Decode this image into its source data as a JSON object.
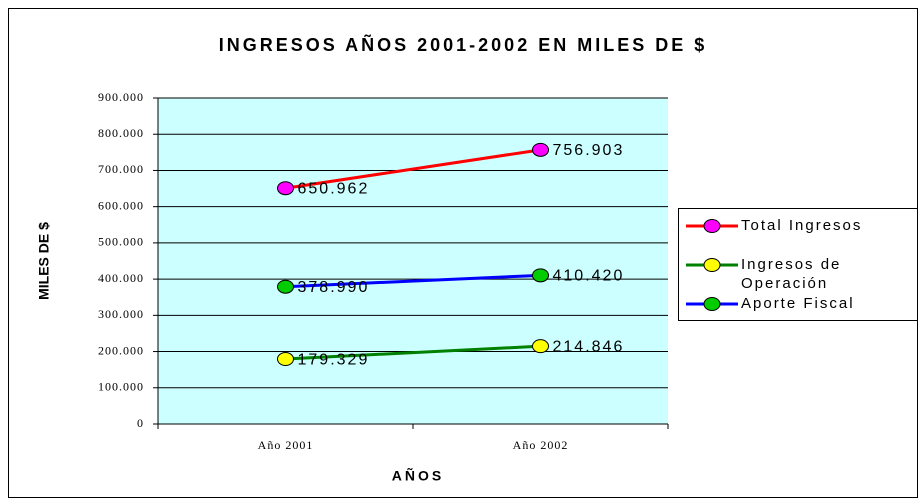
{
  "chart_data": {
    "type": "line",
    "title": "INGRESOS AÑOS 2001-2002 EN MILES DE $",
    "x_label": "AÑOS",
    "y_label": "MILES DE $",
    "categories": [
      "Año 2001",
      "Año 2002"
    ],
    "series": [
      {
        "name": "Total Ingresos",
        "color": "#ff0000",
        "marker_color": "#ff00ff",
        "values": [
          650962,
          756903
        ],
        "value_labels": [
          "650.962",
          "756.903"
        ]
      },
      {
        "name": "Ingresos de Operación",
        "color": "#008000",
        "marker_color": "#ffff00",
        "values": [
          179329,
          214846
        ],
        "value_labels": [
          "179.329",
          "214.846"
        ]
      },
      {
        "name": "Aporte Fiscal",
        "color": "#0000ff",
        "marker_color": "#00cc00",
        "values": [
          378990,
          410420
        ],
        "value_labels": [
          "378.990",
          "410.420"
        ]
      }
    ],
    "ylim": [
      0,
      900000
    ],
    "yticks": [
      0,
      {
        "value": 100000,
        "label": "100.000"
      },
      {
        "value": 200000,
        "label": "200.000"
      },
      {
        "value": 300000,
        "label": "300.000"
      },
      {
        "value": 400000,
        "label": "400.000"
      },
      {
        "value": 500000,
        "label": "500.000"
      },
      {
        "value": 600000,
        "label": "600.000"
      },
      {
        "value": 700000,
        "label": "700.000"
      },
      {
        "value": 800000,
        "label": "800.000"
      },
      {
        "value": 900000,
        "label": "900.000"
      }
    ],
    "grid": true,
    "plot_background": "#ccffff",
    "legend": "right"
  }
}
